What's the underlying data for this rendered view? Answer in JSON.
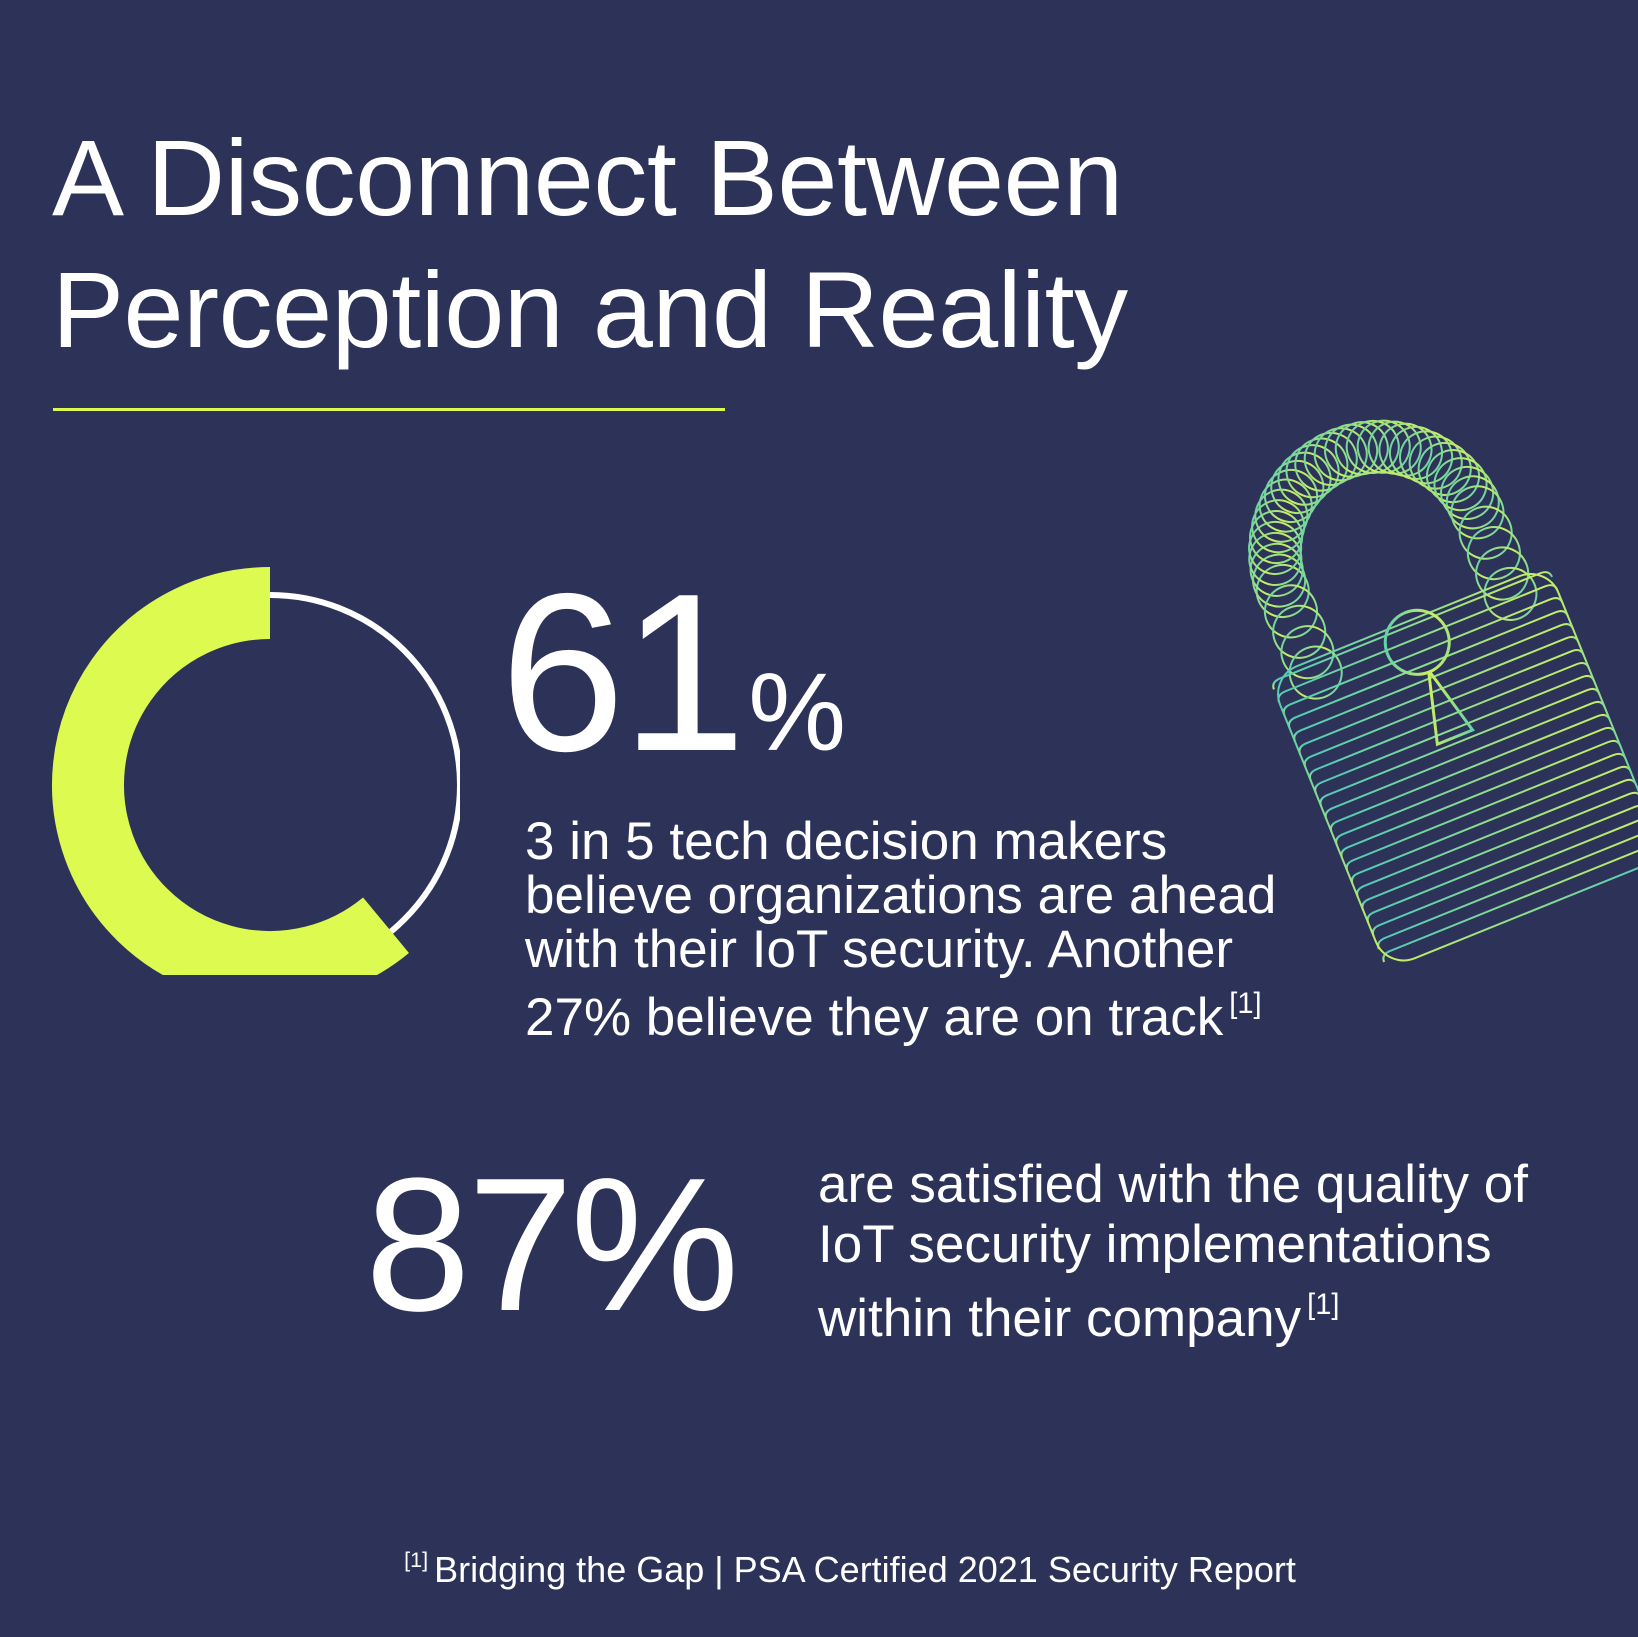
{
  "title": {
    "line1": "A Disconnect Between",
    "line2": "Perception and Reality"
  },
  "colors": {
    "background": "#2d3259",
    "accent": "#dcfa50",
    "text": "#ffffff"
  },
  "stat1": {
    "number": "61",
    "percent_sign": "%",
    "fraction": 0.61,
    "description": [
      "3 in 5 tech decision makers",
      "believe organizations are ahead",
      "with their IoT security. Another",
      "27% believe they are on track"
    ],
    "ref": "[1]"
  },
  "stat2": {
    "number": "87%",
    "description": [
      "are satisfied with the quality of",
      "IoT security implementations",
      "within their company"
    ],
    "ref": "[1]"
  },
  "footnote": {
    "ref": "[1]",
    "text": "Bridging the Gap | PSA Certified 2021 Security Report"
  },
  "icons": {
    "lock": "padlock-icon"
  }
}
